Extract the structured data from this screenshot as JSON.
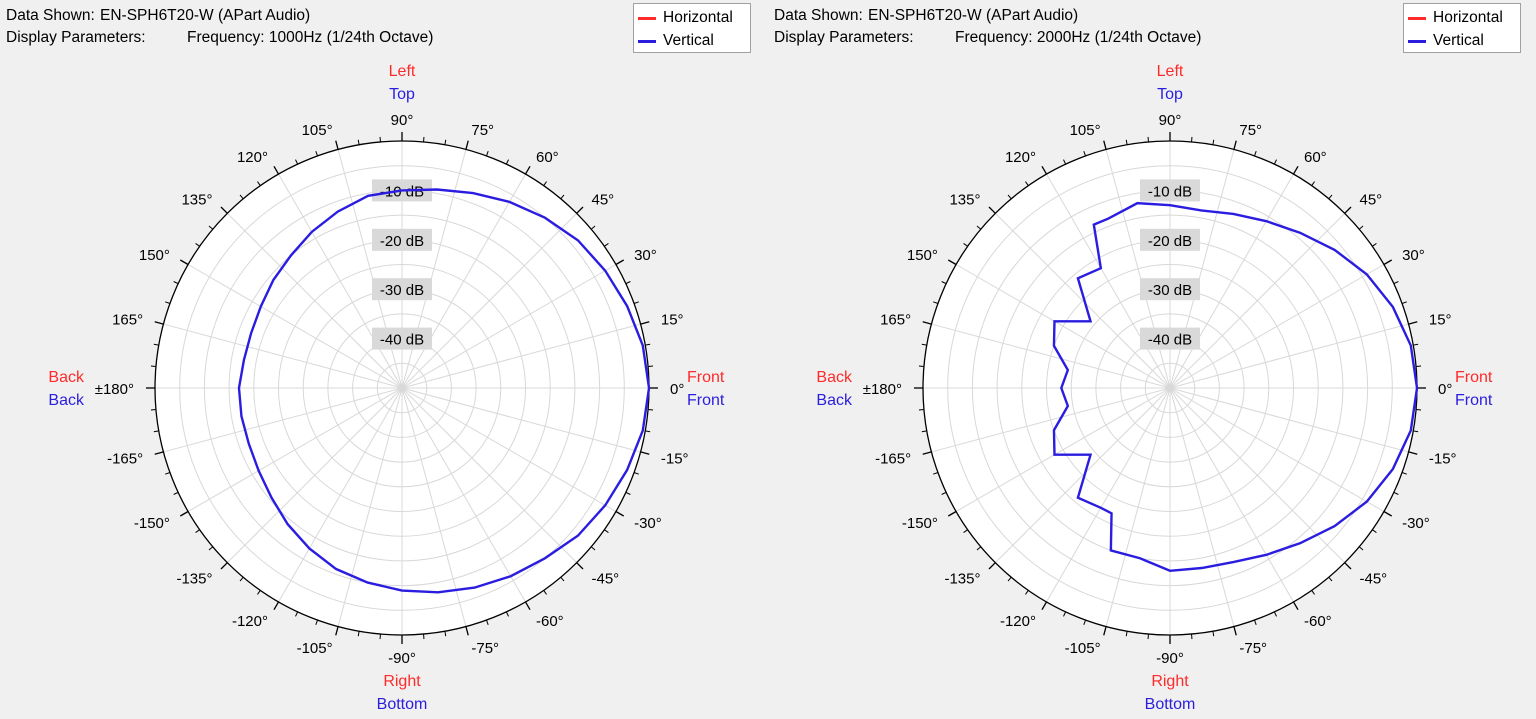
{
  "colors": {
    "horizontal": "#ff2a2a",
    "vertical": "#2a1de0",
    "grid": "#d8d8d8",
    "axis": "#000000",
    "ring_label_bg": "#d9d9d9",
    "background": "#f0f0f0"
  },
  "chart_data": [
    {
      "type": "polar",
      "header": {
        "data_shown_label": "Data Shown:",
        "data_shown_value": "EN-SPH6T20-W (APart Audio)",
        "display_params_label": "Display Parameters:",
        "display_params_value": "Frequency: 1000Hz (1/24th Octave)"
      },
      "legend": [
        {
          "name": "Horizontal",
          "color": "#ff2a2a"
        },
        {
          "name": "Vertical",
          "color": "#2a1de0"
        }
      ],
      "rlim": [
        -50,
        0
      ],
      "ring_labels": [
        {
          "value": -10,
          "label": "-10 dB"
        },
        {
          "value": -20,
          "label": "-20 dB"
        },
        {
          "value": -30,
          "label": "-30 dB"
        },
        {
          "value": -40,
          "label": "-40 dB"
        }
      ],
      "angle_labels": [
        {
          "angle": 0,
          "label": "0°"
        },
        {
          "angle": 15,
          "label": "15°"
        },
        {
          "angle": 30,
          "label": "30°"
        },
        {
          "angle": 45,
          "label": "45°"
        },
        {
          "angle": 60,
          "label": "60°"
        },
        {
          "angle": 75,
          "label": "75°"
        },
        {
          "angle": 90,
          "label": "90°"
        },
        {
          "angle": 105,
          "label": "105°"
        },
        {
          "angle": 120,
          "label": "120°"
        },
        {
          "angle": 135,
          "label": "135°"
        },
        {
          "angle": 150,
          "label": "150°"
        },
        {
          "angle": 165,
          "label": "165°"
        },
        {
          "angle": 180,
          "label": "±180°"
        },
        {
          "angle": -165,
          "label": "-165°"
        },
        {
          "angle": -150,
          "label": "-150°"
        },
        {
          "angle": -135,
          "label": "-135°"
        },
        {
          "angle": -120,
          "label": "-120°"
        },
        {
          "angle": -105,
          "label": "-105°"
        },
        {
          "angle": -90,
          "label": "-90°"
        },
        {
          "angle": -75,
          "label": "-75°"
        },
        {
          "angle": -60,
          "label": "-60°"
        },
        {
          "angle": -45,
          "label": "-45°"
        },
        {
          "angle": -30,
          "label": "-30°"
        },
        {
          "angle": -15,
          "label": "-15°"
        }
      ],
      "direction_labels": {
        "top": [
          {
            "text": "Left",
            "series": "Horizontal"
          },
          {
            "text": "Top",
            "series": "Vertical"
          }
        ],
        "bottom": [
          {
            "text": "Right",
            "series": "Horizontal"
          },
          {
            "text": "Bottom",
            "series": "Vertical"
          }
        ],
        "left": [
          {
            "text": "Back",
            "series": "Horizontal"
          },
          {
            "text": "Back",
            "series": "Vertical"
          }
        ],
        "right": [
          {
            "text": "Front",
            "series": "Horizontal"
          },
          {
            "text": "Front",
            "series": "Vertical"
          }
        ]
      },
      "series": [
        {
          "name": "Vertical",
          "angles": [
            0,
            10,
            20,
            30,
            40,
            50,
            60,
            70,
            80,
            90,
            100,
            110,
            120,
            130,
            140,
            150,
            160,
            170,
            180,
            -170,
            -160,
            -150,
            -140,
            -130,
            -120,
            -110,
            -100,
            -90,
            -80,
            -70,
            -60,
            -50,
            -40,
            -30,
            -20,
            -10
          ],
          "values": [
            0,
            -0.5,
            -1.5,
            -2.5,
            -3.5,
            -5,
            -6.5,
            -8,
            -9.2,
            -10,
            -10.5,
            -12,
            -13.5,
            -15,
            -16,
            -17,
            -17.5,
            -17.5,
            -17,
            -17,
            -17,
            -16.5,
            -15.5,
            -14,
            -12.5,
            -11,
            -10,
            -9,
            -8,
            -7,
            -6,
            -5,
            -3.5,
            -2.5,
            -1.5,
            -0.5
          ]
        }
      ]
    },
    {
      "type": "polar",
      "header": {
        "data_shown_label": "Data Shown:",
        "data_shown_value": "EN-SPH6T20-W (APart Audio)",
        "display_params_label": "Display Parameters:",
        "display_params_value": "Frequency: 2000Hz (1/24th Octave)"
      },
      "legend": [
        {
          "name": "Horizontal",
          "color": "#ff2a2a"
        },
        {
          "name": "Vertical",
          "color": "#2a1de0"
        }
      ],
      "rlim": [
        -50,
        0
      ],
      "ring_labels": [
        {
          "value": -10,
          "label": "-10 dB"
        },
        {
          "value": -20,
          "label": "-20 dB"
        },
        {
          "value": -30,
          "label": "-30 dB"
        },
        {
          "value": -40,
          "label": "-40 dB"
        }
      ],
      "angle_labels": [
        {
          "angle": 0,
          "label": "0°"
        },
        {
          "angle": 15,
          "label": "15°"
        },
        {
          "angle": 30,
          "label": "30°"
        },
        {
          "angle": 45,
          "label": "45°"
        },
        {
          "angle": 60,
          "label": "60°"
        },
        {
          "angle": 75,
          "label": "75°"
        },
        {
          "angle": 90,
          "label": "90°"
        },
        {
          "angle": 105,
          "label": "105°"
        },
        {
          "angle": 120,
          "label": "120°"
        },
        {
          "angle": 135,
          "label": "135°"
        },
        {
          "angle": 150,
          "label": "150°"
        },
        {
          "angle": 165,
          "label": "165°"
        },
        {
          "angle": 180,
          "label": "±180°"
        },
        {
          "angle": -165,
          "label": "-165°"
        },
        {
          "angle": -150,
          "label": "-150°"
        },
        {
          "angle": -135,
          "label": "-135°"
        },
        {
          "angle": -120,
          "label": "-120°"
        },
        {
          "angle": -105,
          "label": "-105°"
        },
        {
          "angle": -90,
          "label": "-90°"
        },
        {
          "angle": -75,
          "label": "-75°"
        },
        {
          "angle": -60,
          "label": "-60°"
        },
        {
          "angle": -45,
          "label": "-45°"
        },
        {
          "angle": -30,
          "label": "-30°"
        },
        {
          "angle": -15,
          "label": "-15°"
        }
      ],
      "direction_labels": {
        "top": [
          {
            "text": "Left",
            "series": "Horizontal"
          },
          {
            "text": "Top",
            "series": "Vertical"
          }
        ],
        "bottom": [
          {
            "text": "Right",
            "series": "Horizontal"
          },
          {
            "text": "Bottom",
            "series": "Vertical"
          }
        ],
        "left": [
          {
            "text": "Back",
            "series": "Horizontal"
          },
          {
            "text": "Back",
            "series": "Vertical"
          }
        ],
        "right": [
          {
            "text": "Front",
            "series": "Horizontal"
          },
          {
            "text": "Front",
            "series": "Vertical"
          }
        ]
      },
      "series": [
        {
          "name": "Vertical",
          "angles": [
            0,
            10,
            20,
            30,
            40,
            50,
            60,
            70,
            80,
            90,
            100,
            110,
            115,
            120,
            130,
            140,
            150,
            160,
            170,
            180,
            -170,
            -160,
            -150,
            -140,
            -130,
            -120,
            -115,
            -110,
            -100,
            -90,
            -80,
            -70,
            -60,
            -50,
            -40,
            -30,
            -20,
            -10
          ],
          "values": [
            0,
            -0.5,
            -2,
            -4,
            -6.5,
            -9,
            -11,
            -12.5,
            -13.5,
            -13,
            -12,
            -13.5,
            -13.5,
            -22,
            -21,
            -29,
            -23,
            -25,
            -29,
            -28,
            -29,
            -25,
            -23,
            -29,
            -21,
            -22,
            -22,
            -15,
            -15,
            -13,
            -13,
            -12.5,
            -11,
            -9,
            -6.5,
            -4,
            -2,
            -0.5
          ]
        }
      ]
    }
  ]
}
